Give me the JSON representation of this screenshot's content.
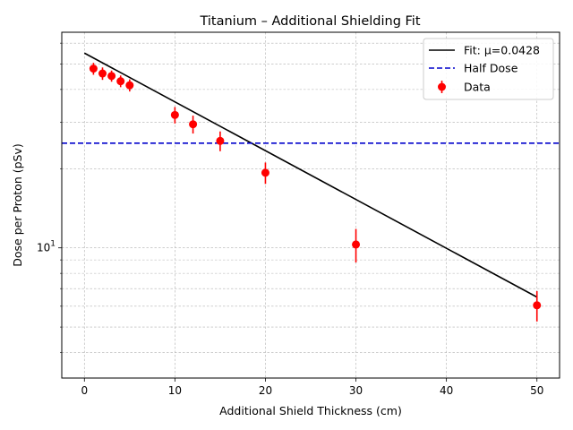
{
  "chart_data": {
    "type": "scatter",
    "title": "Titanium – Additional Shielding Fit",
    "xlabel": "Additional Shield Thickness (cm)",
    "ylabel": "Dose per Proton (pSv)",
    "xlim": [
      -2.5,
      52.5
    ],
    "ylim": [
      3.2,
      66
    ],
    "yscale": "log",
    "xticks": [
      0,
      10,
      20,
      30,
      40,
      50
    ],
    "xtick_labels": [
      "0",
      "10",
      "20",
      "30",
      "40",
      "50"
    ],
    "ytick_major": [
      10
    ],
    "ytick_major_labels": [
      "10"
    ],
    "ytick_minor": [
      4,
      5,
      6,
      7,
      8,
      9,
      20,
      30,
      40,
      50,
      60
    ],
    "grid": true,
    "legend_position": "top-right",
    "series": [
      {
        "name": "Fit: μ=0.0428",
        "kind": "line",
        "color": "#000000",
        "x": [
          0,
          50
        ],
        "y": [
          55,
          6.5
        ]
      },
      {
        "name": "Half Dose",
        "kind": "hline",
        "color": "#0000cc",
        "dash": true,
        "y": 25
      },
      {
        "name": "Data",
        "kind": "errorbar",
        "color": "#ff0000",
        "x": [
          1,
          2,
          3,
          4,
          5,
          10,
          12,
          15,
          20,
          30,
          50
        ],
        "y": [
          48,
          46,
          45,
          43,
          41.5,
          32,
          29.5,
          25.5,
          19.3,
          10.3,
          6.05
        ],
        "yerr": [
          2.5,
          2.5,
          2.2,
          2.2,
          2.2,
          2.3,
          2.3,
          2.2,
          1.8,
          1.5,
          0.8
        ]
      }
    ]
  }
}
